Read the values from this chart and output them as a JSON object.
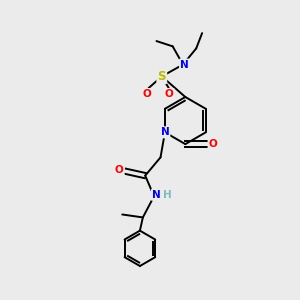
{
  "bg_color": "#ebebeb",
  "bond_color": "#000000",
  "atom_colors": {
    "N": "#0000ff",
    "O": "#ff0000",
    "S": "#bbbb00",
    "H": "#7fbbbb",
    "C": "#000000"
  },
  "font_size": 7.5,
  "fig_size": [
    3.0,
    3.0
  ],
  "dpi": 100
}
